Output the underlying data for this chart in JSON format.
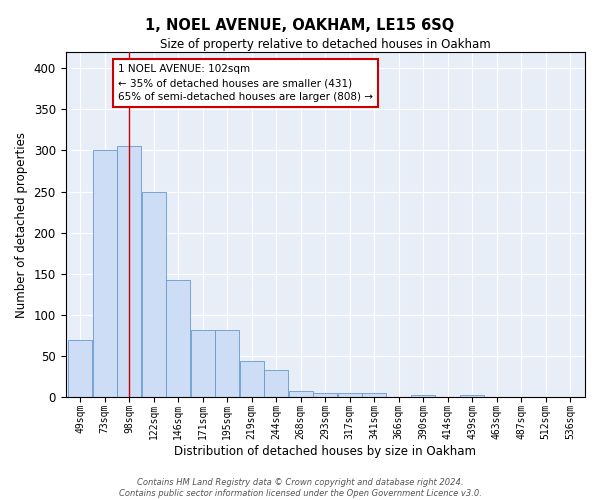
{
  "title": "1, NOEL AVENUE, OAKHAM, LE15 6SQ",
  "subtitle": "Size of property relative to detached houses in Oakham",
  "xlabel": "Distribution of detached houses by size in Oakham",
  "ylabel": "Number of detached properties",
  "bar_values": [
    70,
    300,
    305,
    250,
    143,
    82,
    82,
    44,
    33,
    8,
    5,
    5,
    5,
    0,
    3,
    0,
    3,
    0,
    0,
    0,
    0
  ],
  "categories": [
    "49sqm",
    "73sqm",
    "98sqm",
    "122sqm",
    "146sqm",
    "171sqm",
    "195sqm",
    "219sqm",
    "244sqm",
    "268sqm",
    "293sqm",
    "317sqm",
    "341sqm",
    "366sqm",
    "390sqm",
    "414sqm",
    "439sqm",
    "463sqm",
    "487sqm",
    "512sqm",
    "536sqm"
  ],
  "bar_color": "#ccddf5",
  "bar_edge_color": "#6699cc",
  "background_color": "#e8eef8",
  "grid_color": "#ffffff",
  "red_line_x": 2,
  "annotation_text": "1 NOEL AVENUE: 102sqm\n← 35% of detached houses are smaller (431)\n65% of semi-detached houses are larger (808) →",
  "annotation_box_color": "#ffffff",
  "annotation_box_edge": "#cc0000",
  "footer": "Contains HM Land Registry data © Crown copyright and database right 2024.\nContains public sector information licensed under the Open Government Licence v3.0.",
  "ylim": [
    0,
    420
  ],
  "yticks": [
    0,
    50,
    100,
    150,
    200,
    250,
    300,
    350,
    400
  ]
}
